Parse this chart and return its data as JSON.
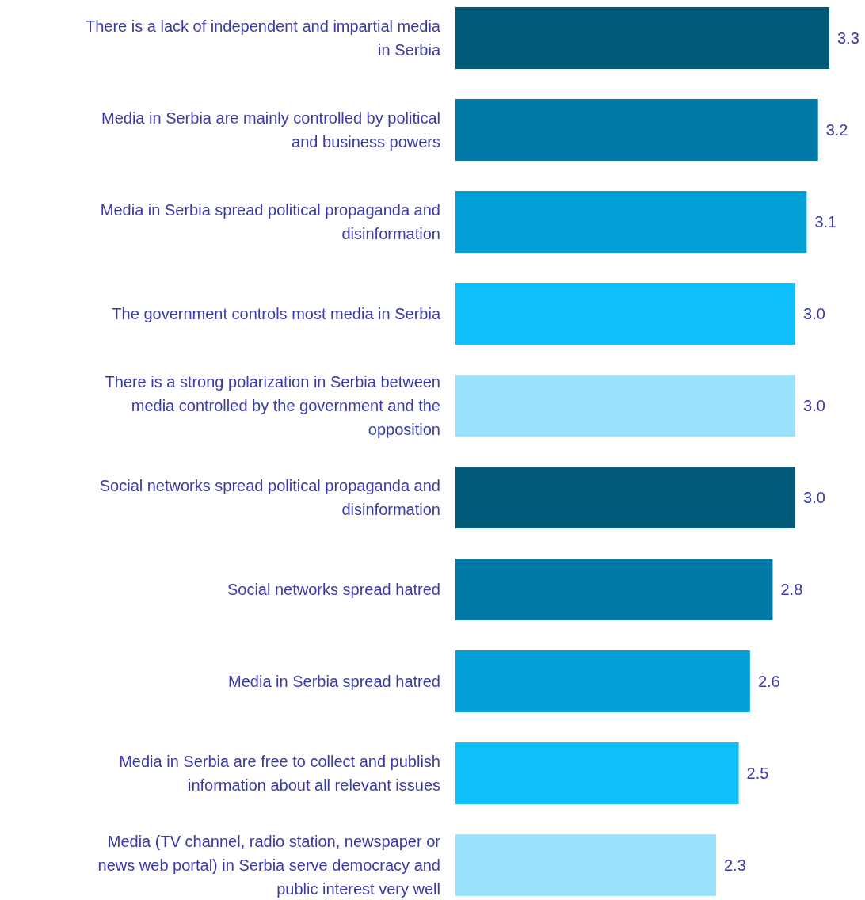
{
  "chart_data": {
    "type": "bar",
    "orientation": "horizontal",
    "categories": [
      "There is a lack of independent and impartial media in Serbia",
      "Media in Serbia are mainly controlled by political and business powers",
      "Media in Serbia spread political propaganda and disinformation",
      "The government controls most media in Serbia",
      "There is a strong polarization in Serbia between media controlled by the government and the opposition",
      "Social networks spread political propaganda and disinformation",
      "Social networks spread hatred",
      "Media in Serbia spread hatred",
      "Media in Serbia are free to collect and publish information about all relevant issues",
      "Media (TV channel, radio station, newspaper or news web portal) in Serbia serve democracy and public interest very well"
    ],
    "values": [
      3.3,
      3.2,
      3.1,
      3.0,
      3.0,
      3.0,
      2.8,
      2.6,
      2.5,
      2.3
    ],
    "value_labels": [
      "3.3",
      "3.2",
      "3.1",
      "3.0",
      "3.0",
      "3.0",
      "2.8",
      "2.6",
      "2.5",
      "2.3"
    ],
    "colors": [
      "#005a78",
      "#0079a6",
      "#00a0d6",
      "#10c0fb",
      "#99e1fc",
      "#005a78",
      "#0079a6",
      "#00a0d6",
      "#10c0fb",
      "#99e1fc"
    ]
  }
}
